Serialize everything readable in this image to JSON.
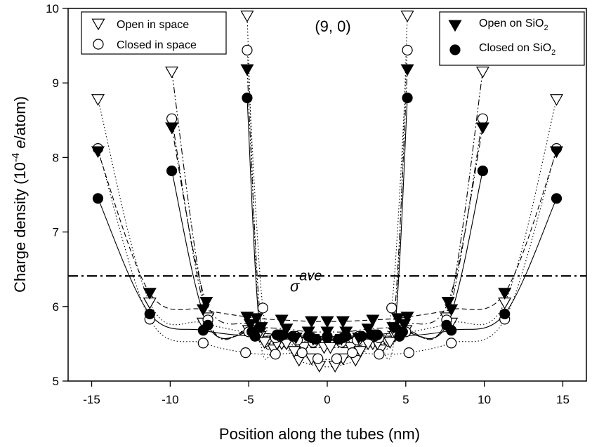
{
  "chart_data": {
    "type": "line",
    "xlabel": "Position along the tubes (nm)",
    "ylabel": {
      "prefix": "Charge density (10",
      "exponent": "-4",
      "suffix_italic": " e",
      "suffix": "/atom)"
    },
    "xlim": [
      -16.5,
      16.5
    ],
    "ylim": [
      5,
      10
    ],
    "xticks": [
      -15,
      -10,
      -5,
      0,
      5,
      10,
      15
    ],
    "yticks": [
      5,
      6,
      7,
      8,
      9,
      10
    ],
    "annotation_title": "(9, 0)",
    "reference_line": {
      "label": "σ",
      "label_superscript": "ave",
      "y": 6.41
    },
    "grid": false,
    "legend_left": [
      "Open in space",
      "Closed in space"
    ],
    "legend_right": [
      {
        "text": "Open on SiO",
        "sub": "2"
      },
      {
        "text": "Closed on SiO",
        "sub": "2"
      }
    ],
    "series": [
      {
        "name": "Open in space",
        "marker": "triangle-down-open",
        "curves": [
          {
            "style": "dotted",
            "points": [
              [
                -14.6,
                8.78
              ],
              [
                -11.3,
                6.05
              ],
              [
                -7.9,
                5.78
              ],
              [
                -4.3,
                5.6
              ],
              [
                -3.4,
                5.42
              ],
              [
                -2.9,
                5.5
              ],
              [
                -1.8,
                5.28
              ],
              [
                -0.5,
                5.2
              ],
              [
                0.5,
                5.2
              ],
              [
                1.8,
                5.28
              ],
              [
                2.9,
                5.5
              ],
              [
                3.4,
                5.42
              ],
              [
                4.3,
                5.6
              ],
              [
                7.9,
                5.78
              ],
              [
                11.3,
                6.05
              ],
              [
                14.6,
                8.78
              ]
            ]
          },
          {
            "style": "dashdotdot",
            "points": [
              [
                -9.9,
                9.15
              ],
              [
                -7.6,
                5.85
              ],
              [
                -5.0,
                5.68
              ],
              [
                -4.0,
                5.52
              ],
              [
                -2.6,
                5.5
              ],
              [
                -1.5,
                5.45
              ],
              [
                -0.2,
                5.45
              ],
              [
                0.2,
                5.45
              ],
              [
                1.5,
                5.45
              ],
              [
                2.6,
                5.5
              ],
              [
                4.0,
                5.52
              ],
              [
                5.0,
                5.68
              ],
              [
                7.6,
                5.85
              ],
              [
                9.9,
                9.15
              ]
            ]
          },
          {
            "style": "dotted",
            "points": [
              [
                -5.1,
                9.9
              ],
              [
                -4.3,
                5.65
              ],
              [
                -3.2,
                5.5
              ],
              [
                -2.1,
                5.4
              ],
              [
                -1.0,
                5.3
              ],
              [
                1.0,
                5.3
              ],
              [
                2.1,
                5.4
              ],
              [
                3.2,
                5.5
              ],
              [
                4.3,
                5.65
              ],
              [
                5.1,
                9.9
              ]
            ]
          }
        ]
      },
      {
        "name": "Closed in space",
        "marker": "circle-open",
        "curves": [
          {
            "style": "dotted",
            "points": [
              [
                -14.6,
                8.12
              ],
              [
                -11.3,
                5.83
              ],
              [
                -7.9,
                5.51
              ],
              [
                -5.2,
                5.38
              ],
              [
                -3.3,
                5.36
              ],
              [
                -1.6,
                5.38
              ],
              [
                -0.6,
                5.3
              ],
              [
                0.6,
                5.3
              ],
              [
                1.6,
                5.38
              ],
              [
                3.3,
                5.36
              ],
              [
                5.2,
                5.38
              ],
              [
                7.9,
                5.51
              ],
              [
                11.3,
                5.83
              ],
              [
                14.6,
                8.12
              ]
            ]
          },
          {
            "style": "dashdotdot",
            "points": [
              [
                -9.9,
                8.52
              ],
              [
                -7.6,
                5.82
              ],
              [
                -5.0,
                5.66
              ],
              [
                -3.3,
                5.58
              ],
              [
                -2.0,
                5.6
              ],
              [
                -0.8,
                5.55
              ],
              [
                0.8,
                5.55
              ],
              [
                2.0,
                5.6
              ],
              [
                3.3,
                5.58
              ],
              [
                5.0,
                5.66
              ],
              [
                7.6,
                5.82
              ],
              [
                9.9,
                8.52
              ]
            ]
          },
          {
            "style": "dotted",
            "points": [
              [
                -5.1,
                9.44
              ],
              [
                -4.1,
                5.98
              ],
              [
                -3.0,
                5.6
              ],
              [
                -1.9,
                5.55
              ],
              [
                -0.9,
                5.52
              ],
              [
                0.9,
                5.52
              ],
              [
                1.9,
                5.55
              ],
              [
                3.0,
                5.6
              ],
              [
                4.1,
                5.98
              ],
              [
                5.1,
                9.44
              ]
            ]
          }
        ]
      },
      {
        "name": "Open on SiO2",
        "marker": "triangle-down-filled",
        "curves": [
          {
            "style": "dashed",
            "points": [
              [
                -14.6,
                8.08
              ],
              [
                -11.3,
                6.18
              ],
              [
                -7.9,
                5.96
              ],
              [
                -5.1,
                5.86
              ],
              [
                -4.5,
                5.84
              ],
              [
                -2.9,
                5.82
              ],
              [
                -1.0,
                5.8
              ],
              [
                0.0,
                5.8
              ],
              [
                1.0,
                5.8
              ],
              [
                2.9,
                5.82
              ],
              [
                4.5,
                5.84
              ],
              [
                5.1,
                5.86
              ],
              [
                7.9,
                5.96
              ],
              [
                11.3,
                6.18
              ],
              [
                14.6,
                8.08
              ]
            ]
          },
          {
            "style": "dashdot",
            "points": [
              [
                -9.9,
                8.4
              ],
              [
                -7.7,
                6.06
              ],
              [
                -4.9,
                5.76
              ],
              [
                -2.6,
                5.7
              ],
              [
                -1.2,
                5.66
              ],
              [
                0.0,
                5.66
              ],
              [
                1.2,
                5.66
              ],
              [
                2.6,
                5.7
              ],
              [
                4.9,
                5.76
              ],
              [
                7.7,
                6.06
              ],
              [
                9.9,
                8.4
              ]
            ]
          },
          {
            "style": "dashdotdot",
            "points": [
              [
                -5.1,
                9.18
              ],
              [
                -4.2,
                5.72
              ],
              [
                -3.0,
                5.6
              ],
              [
                -2.0,
                5.58
              ],
              [
                -0.9,
                5.56
              ],
              [
                0.9,
                5.56
              ],
              [
                2.0,
                5.58
              ],
              [
                3.0,
                5.6
              ],
              [
                4.2,
                5.72
              ],
              [
                5.1,
                9.18
              ]
            ]
          }
        ]
      },
      {
        "name": "Closed on SiO2",
        "marker": "circle-filled",
        "curves": [
          {
            "style": "solid",
            "points": [
              [
                -14.6,
                7.45
              ],
              [
                -11.3,
                5.9
              ],
              [
                -7.9,
                5.68
              ],
              [
                -4.6,
                5.6
              ],
              [
                -2.8,
                5.62
              ],
              [
                -1.2,
                5.6
              ],
              [
                0.0,
                5.6
              ],
              [
                1.2,
                5.6
              ],
              [
                2.8,
                5.62
              ],
              [
                4.6,
                5.6
              ],
              [
                7.9,
                5.68
              ],
              [
                11.3,
                5.9
              ],
              [
                14.6,
                7.45
              ]
            ]
          },
          {
            "style": "solid",
            "points": [
              [
                -9.9,
                7.82
              ],
              [
                -7.6,
                5.75
              ],
              [
                -4.8,
                5.66
              ],
              [
                -3.0,
                5.62
              ],
              [
                -1.0,
                5.58
              ],
              [
                0.0,
                5.58
              ],
              [
                1.0,
                5.58
              ],
              [
                3.0,
                5.62
              ],
              [
                4.8,
                5.66
              ],
              [
                7.6,
                5.75
              ],
              [
                9.9,
                7.82
              ]
            ]
          },
          {
            "style": "solid",
            "points": [
              [
                -5.1,
                8.8
              ],
              [
                -4.3,
                5.72
              ],
              [
                -3.2,
                5.62
              ],
              [
                -2.2,
                5.6
              ],
              [
                -0.7,
                5.56
              ],
              [
                0.7,
                5.56
              ],
              [
                2.2,
                5.6
              ],
              [
                3.2,
                5.62
              ],
              [
                4.3,
                5.72
              ],
              [
                5.1,
                8.8
              ]
            ]
          }
        ]
      }
    ]
  }
}
